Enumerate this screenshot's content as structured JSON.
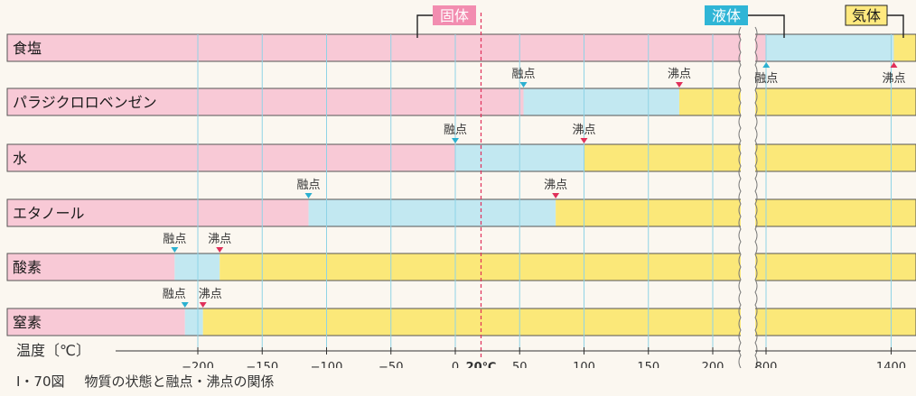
{
  "chart_data": {
    "type": "bar",
    "title": "",
    "xlabel": "温度〔℃〕",
    "x_ticks": [
      {
        "value": -200,
        "label": "−200"
      },
      {
        "value": -150,
        "label": "−150"
      },
      {
        "value": -100,
        "label": "−100"
      },
      {
        "value": -50,
        "label": "−50"
      },
      {
        "value": 0,
        "label": "0"
      },
      {
        "value": 50,
        "label": "50"
      },
      {
        "value": 100,
        "label": "100"
      },
      {
        "value": 150,
        "label": "150"
      },
      {
        "value": 200,
        "label": "200"
      },
      {
        "value": 800,
        "label": "800"
      },
      {
        "value": 1400,
        "label": "1400"
      }
    ],
    "axis_break": [
      250,
      780
    ],
    "reference_line": {
      "value": 20,
      "label": "20℃"
    },
    "legend": [
      {
        "name": "固体",
        "color": "#f28db0"
      },
      {
        "name": "液体",
        "color": "#2fb5d6"
      },
      {
        "name": "気体",
        "color": "#ffe97f"
      }
    ],
    "colors": {
      "solid": "#f8c9d6",
      "liquid": "#c2e8f1",
      "gas": "#fbe879",
      "mp_marker": "#2bb0d0",
      "bp_marker": "#e0305a",
      "reference_line": "#e0305a",
      "grid": "#8fd3e6"
    },
    "point_labels": {
      "melting": "融点",
      "boiling": "沸点"
    },
    "substances": [
      {
        "name": "食塩",
        "melting_point": 801,
        "boiling_point": 1413
      },
      {
        "name": "パラジクロロベンゼン",
        "melting_point": 53,
        "boiling_point": 174
      },
      {
        "name": "水",
        "melting_point": 0,
        "boiling_point": 100
      },
      {
        "name": "エタノール",
        "melting_point": -114,
        "boiling_point": 78
      },
      {
        "name": "酸素",
        "melting_point": -218,
        "boiling_point": -183
      },
      {
        "name": "窒素",
        "melting_point": -210,
        "boiling_point": -196
      }
    ]
  },
  "caption": {
    "figure": "Ⅰ・70図",
    "text": "物質の状態と融点・沸点の関係"
  }
}
